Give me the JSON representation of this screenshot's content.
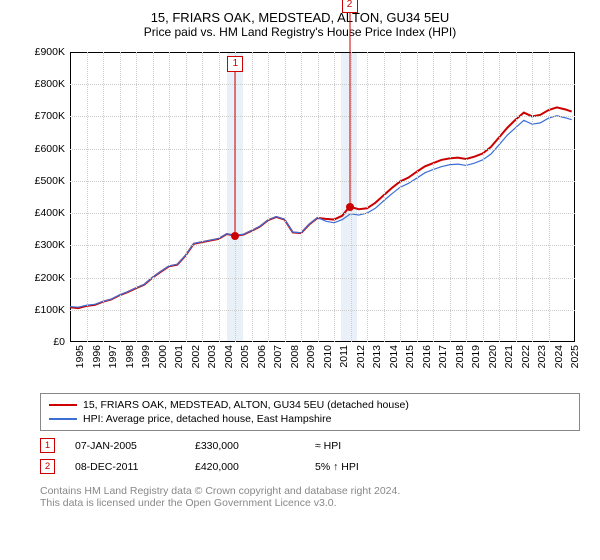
{
  "title_line1": "15, FRIARS OAK, MEDSTEAD, ALTON, GU34 5EU",
  "title_line2": "Price paid vs. HM Land Registry's House Price Index (HPI)",
  "chart": {
    "type": "line",
    "background_color": "#ffffff",
    "grid_color": "#cccccc",
    "border_color": "#000000",
    "shade_color": "#eaf0f8",
    "xlim": [
      1995,
      2025.6
    ],
    "ylim": [
      0,
      900000
    ],
    "y_ticks": [
      0,
      100000,
      200000,
      300000,
      400000,
      500000,
      600000,
      700000,
      800000,
      900000
    ],
    "y_tick_labels": [
      "£0",
      "£100K",
      "£200K",
      "£300K",
      "£400K",
      "£500K",
      "£600K",
      "£700K",
      "£800K",
      "£900K"
    ],
    "x_ticks": [
      1995,
      1996,
      1997,
      1998,
      1999,
      2000,
      2001,
      2002,
      2003,
      2004,
      2005,
      2006,
      2007,
      2008,
      2009,
      2010,
      2011,
      2012,
      2013,
      2014,
      2015,
      2016,
      2017,
      2018,
      2019,
      2020,
      2021,
      2022,
      2023,
      2024,
      2025
    ],
    "x_tick_labels": [
      "1995",
      "1996",
      "1997",
      "1998",
      "1999",
      "2000",
      "2001",
      "2002",
      "2003",
      "2004",
      "2005",
      "2006",
      "2007",
      "2008",
      "2009",
      "2010",
      "2011",
      "2012",
      "2013",
      "2014",
      "2015",
      "2016",
      "2017",
      "2018",
      "2019",
      "2020",
      "2021",
      "2022",
      "2023",
      "2024",
      "2025"
    ],
    "shade_ranges": [
      [
        2004.5,
        2005.5
      ],
      [
        2011.4,
        2012.4
      ]
    ],
    "series": [
      {
        "name": "15, FRIARS OAK, MEDSTEAD, ALTON, GU34 5EU (detached house)",
        "color": "#cc0000",
        "line_width": 2,
        "points": [
          [
            1995,
            108000
          ],
          [
            1995.5,
            105000
          ],
          [
            1996,
            112000
          ],
          [
            1996.5,
            115000
          ],
          [
            1997,
            125000
          ],
          [
            1997.5,
            132000
          ],
          [
            1998,
            145000
          ],
          [
            1998.5,
            155000
          ],
          [
            1999,
            167000
          ],
          [
            1999.5,
            178000
          ],
          [
            2000,
            200000
          ],
          [
            2000.5,
            218000
          ],
          [
            2001,
            235000
          ],
          [
            2001.5,
            240000
          ],
          [
            2002,
            268000
          ],
          [
            2002.5,
            305000
          ],
          [
            2003,
            310000
          ],
          [
            2003.5,
            315000
          ],
          [
            2004,
            320000
          ],
          [
            2004.5,
            335000
          ],
          [
            2005,
            330000
          ],
          [
            2005.5,
            333000
          ],
          [
            2006,
            345000
          ],
          [
            2006.5,
            358000
          ],
          [
            2007,
            378000
          ],
          [
            2007.5,
            388000
          ],
          [
            2008,
            380000
          ],
          [
            2008.5,
            340000
          ],
          [
            2009,
            338000
          ],
          [
            2009.5,
            365000
          ],
          [
            2010,
            385000
          ],
          [
            2010.5,
            382000
          ],
          [
            2011,
            380000
          ],
          [
            2011.5,
            392000
          ],
          [
            2011.94,
            420000
          ],
          [
            2012.5,
            412000
          ],
          [
            2013,
            415000
          ],
          [
            2013.5,
            432000
          ],
          [
            2014,
            455000
          ],
          [
            2014.5,
            478000
          ],
          [
            2015,
            498000
          ],
          [
            2015.5,
            510000
          ],
          [
            2016,
            528000
          ],
          [
            2016.5,
            545000
          ],
          [
            2017,
            555000
          ],
          [
            2017.5,
            565000
          ],
          [
            2018,
            570000
          ],
          [
            2018.5,
            572000
          ],
          [
            2019,
            568000
          ],
          [
            2019.5,
            575000
          ],
          [
            2020,
            585000
          ],
          [
            2020.5,
            605000
          ],
          [
            2021,
            635000
          ],
          [
            2021.5,
            665000
          ],
          [
            2022,
            690000
          ],
          [
            2022.5,
            712000
          ],
          [
            2023,
            700000
          ],
          [
            2023.5,
            705000
          ],
          [
            2024,
            720000
          ],
          [
            2024.5,
            728000
          ],
          [
            2025,
            722000
          ],
          [
            2025.4,
            715000
          ]
        ]
      },
      {
        "name": "HPI: Average price, detached house, East Hampshire",
        "color": "#3a6fd8",
        "line_width": 1.2,
        "points": [
          [
            1995,
            110000
          ],
          [
            1995.5,
            108000
          ],
          [
            1996,
            114000
          ],
          [
            1996.5,
            117000
          ],
          [
            1997,
            126000
          ],
          [
            1997.5,
            133000
          ],
          [
            1998,
            146000
          ],
          [
            1998.5,
            156000
          ],
          [
            1999,
            168000
          ],
          [
            1999.5,
            179000
          ],
          [
            2000,
            201000
          ],
          [
            2000.5,
            219000
          ],
          [
            2001,
            236000
          ],
          [
            2001.5,
            241000
          ],
          [
            2002,
            269000
          ],
          [
            2002.5,
            306000
          ],
          [
            2003,
            311000
          ],
          [
            2003.5,
            316000
          ],
          [
            2004,
            321000
          ],
          [
            2004.5,
            336000
          ],
          [
            2005,
            331000
          ],
          [
            2005.5,
            334000
          ],
          [
            2006,
            346000
          ],
          [
            2006.5,
            359000
          ],
          [
            2007,
            379000
          ],
          [
            2007.5,
            389000
          ],
          [
            2008,
            381000
          ],
          [
            2008.5,
            341000
          ],
          [
            2009,
            339000
          ],
          [
            2009.5,
            366000
          ],
          [
            2010,
            386000
          ],
          [
            2010.5,
            375000
          ],
          [
            2011,
            370000
          ],
          [
            2011.5,
            380000
          ],
          [
            2012,
            398000
          ],
          [
            2012.5,
            394000
          ],
          [
            2013,
            400000
          ],
          [
            2013.5,
            415000
          ],
          [
            2014,
            438000
          ],
          [
            2014.5,
            460000
          ],
          [
            2015,
            480000
          ],
          [
            2015.5,
            492000
          ],
          [
            2016,
            508000
          ],
          [
            2016.5,
            525000
          ],
          [
            2017,
            535000
          ],
          [
            2017.5,
            544000
          ],
          [
            2018,
            550000
          ],
          [
            2018.5,
            552000
          ],
          [
            2019,
            548000
          ],
          [
            2019.5,
            555000
          ],
          [
            2020,
            565000
          ],
          [
            2020.5,
            583000
          ],
          [
            2021,
            612000
          ],
          [
            2021.5,
            642000
          ],
          [
            2022,
            665000
          ],
          [
            2022.5,
            688000
          ],
          [
            2023,
            676000
          ],
          [
            2023.5,
            680000
          ],
          [
            2024,
            695000
          ],
          [
            2024.5,
            702000
          ],
          [
            2025,
            696000
          ],
          [
            2025.4,
            690000
          ]
        ]
      }
    ],
    "markers": [
      {
        "x": 2005.02,
        "y": 330000,
        "color": "#cc0000",
        "flag": "1",
        "flag_y_offset": -180
      },
      {
        "x": 2011.94,
        "y": 420000,
        "color": "#cc0000",
        "flag": "2",
        "flag_y_offset": -210
      }
    ]
  },
  "legend": {
    "items": [
      {
        "color": "#cc0000",
        "label": "15, FRIARS OAK, MEDSTEAD, ALTON, GU34 5EU (detached house)"
      },
      {
        "color": "#3a6fd8",
        "label": "HPI: Average price, detached house, East Hampshire"
      }
    ]
  },
  "sales": [
    {
      "flag": "1",
      "color": "#cc0000",
      "date": "07-JAN-2005",
      "price": "£330,000",
      "diff": "≈ HPI"
    },
    {
      "flag": "2",
      "color": "#cc0000",
      "date": "08-DEC-2011",
      "price": "£420,000",
      "diff": "5% ↑ HPI"
    }
  ],
  "footer_line1": "Contains HM Land Registry data © Crown copyright and database right 2024.",
  "footer_line2": "This data is licensed under the Open Government Licence v3.0.",
  "label_fontsize": 10.5,
  "title_fontsize": 13
}
